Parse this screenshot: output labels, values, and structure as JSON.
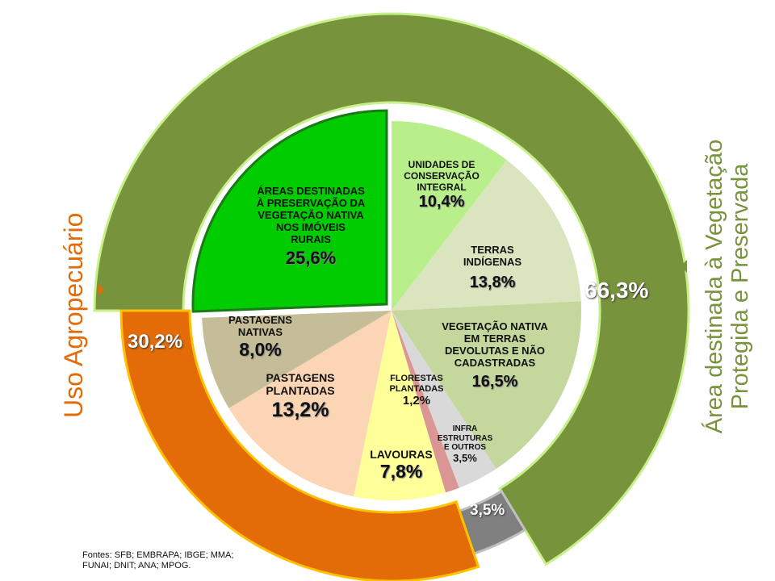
{
  "chart_data": {
    "type": "pie",
    "title": "",
    "inner": {
      "slices": [
        {
          "label_lines": [
            "UNIDADES DE",
            "CONSERVAÇÃO",
            "INTEGRAL"
          ],
          "value": 10.4,
          "display": "10,4%",
          "color": "#b9ef8b"
        },
        {
          "label_lines": [
            "TERRAS",
            "INDÍGENAS"
          ],
          "value": 13.8,
          "display": "13,8%",
          "color": "#dae5bf"
        },
        {
          "label_lines": [
            "VEGETAÇÃO NATIVA",
            "EM TERRAS",
            "DEVOLUTAS E NÃO",
            "CADASTRADAS"
          ],
          "value": 16.5,
          "display": "16,5%",
          "color": "#c4d79c"
        },
        {
          "label_lines": [
            "INFRA",
            "ESTRUTURAS",
            "E OUTROS"
          ],
          "value": 3.5,
          "display": "3,5%",
          "color": "#d9d9d9"
        },
        {
          "label_lines": [
            "FLORESTAS",
            "PLANTADAS"
          ],
          "value": 1.2,
          "display": "1,2%",
          "color": "#d99694"
        },
        {
          "label_lines": [
            "LAVOURAS"
          ],
          "value": 7.8,
          "display": "7,8%",
          "color": "#ffff99"
        },
        {
          "label_lines": [
            "PASTAGENS",
            "PLANTADAS"
          ],
          "value": 13.2,
          "display": "13,2%",
          "color": "#fcd5b5"
        },
        {
          "label_lines": [
            "PASTAGENS",
            "NATIVAS"
          ],
          "value": 8.0,
          "display": "8,0%",
          "color": "#c4bd97"
        },
        {
          "label_lines": [
            "ÁREAS DESTINADAS",
            "À PRESERVAÇÃO DA",
            "VEGETAÇÃO NATIVA",
            "NOS IMÓVEIS",
            "RURAIS"
          ],
          "value": 25.6,
          "display": "25,6%",
          "color": "#00cc00",
          "exploded": true
        }
      ]
    },
    "outer": {
      "slices": [
        {
          "label": "Área destinada à Vegetação Protegida e Preservada",
          "value": 66.3,
          "display": "66,3%",
          "color": "#77933c"
        },
        {
          "label": "",
          "value": 3.5,
          "display": "3,5%",
          "color": "#808080"
        },
        {
          "label": "Uso Agropecuário",
          "value": 30.2,
          "display": "30,2%",
          "color": "#e36c09"
        }
      ]
    },
    "side_labels": {
      "left": "Uso Agropecuário",
      "right_line1": "Área destinada à Vegetação",
      "right_line2": "Protegida e Preservada"
    },
    "source": [
      "Fontes: SFB; EMBRAPA;  IBGE; MMA;",
      "FUNAI; DNIT; ANA;  MPOG."
    ]
  }
}
